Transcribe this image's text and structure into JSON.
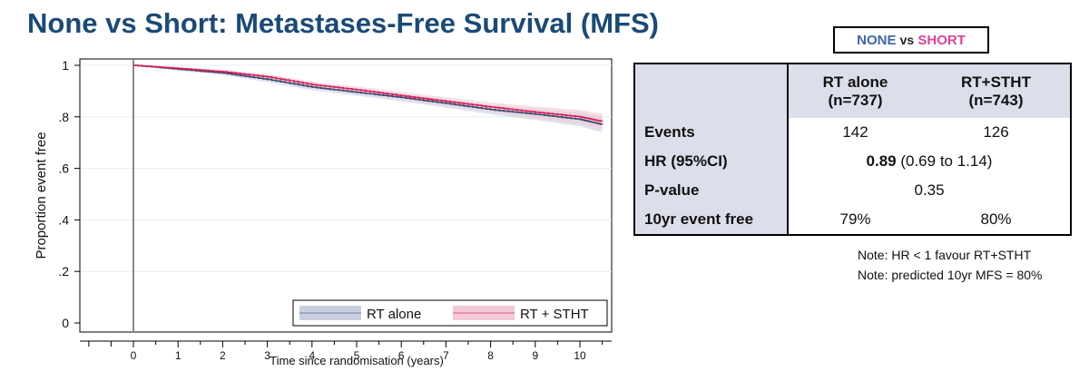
{
  "title": "None vs Short: Metastases-Free Survival (MFS)",
  "badge": {
    "none": "NONE",
    "vs": "vs",
    "short": "SHORT"
  },
  "colors": {
    "title": "#1b4a77",
    "rt_alone_line": "#3b4a75",
    "rt_alone_band": "#c9d0e0",
    "rt_stht_line": "#d6205a",
    "rt_stht_band": "#f3c9d6",
    "table_header_bg": "#dcdee9"
  },
  "table": {
    "headers": [
      {
        "line1": "RT alone",
        "line2": "(n=737)"
      },
      {
        "line1": "RT+STHT",
        "line2": "(n=743)"
      }
    ],
    "rows": [
      {
        "label": "Events",
        "v1": "142",
        "v2": "126"
      },
      {
        "label": "HR (95%CI)",
        "merged_bold": "0.89",
        "merged_rest": " (0.69 to 1.14)"
      },
      {
        "label": "P-value",
        "merged": "0.35"
      },
      {
        "label": "10yr event free",
        "v1": "79%",
        "v2": "80%"
      }
    ]
  },
  "notes": [
    "Note: HR < 1 favour RT+STHT",
    "Note: predicted 10yr MFS = 80%"
  ],
  "chart_data": {
    "type": "line",
    "title": "",
    "xlabel": "Time since randomisation (years)",
    "ylabel": "Proportion event free",
    "xlim": [
      -1,
      10.6
    ],
    "ylim": [
      0,
      1
    ],
    "x_ticks": [
      0,
      1,
      2,
      3,
      4,
      5,
      6,
      7,
      8,
      9,
      10
    ],
    "y_ticks": [
      0,
      0.2,
      0.4,
      0.6,
      0.8,
      1
    ],
    "y_tick_labels": [
      "0",
      ".2",
      ".4",
      ".6",
      ".8",
      "1"
    ],
    "grid": true,
    "legend_placement": "bottom-right",
    "series": [
      {
        "name": "RT alone",
        "x": [
          0,
          1,
          2,
          3,
          4,
          5,
          6,
          7,
          8,
          9,
          10,
          10.5
        ],
        "y": [
          1.0,
          0.985,
          0.97,
          0.945,
          0.915,
          0.895,
          0.875,
          0.852,
          0.828,
          0.81,
          0.79,
          0.77
        ],
        "ci_half_width": [
          0.0,
          0.005,
          0.008,
          0.01,
          0.012,
          0.013,
          0.014,
          0.016,
          0.018,
          0.022,
          0.027,
          0.03
        ]
      },
      {
        "name": "RT + STHT",
        "x": [
          0,
          1,
          2,
          3,
          4,
          5,
          6,
          7,
          8,
          9,
          10,
          10.5
        ],
        "y": [
          1.0,
          0.988,
          0.975,
          0.955,
          0.925,
          0.905,
          0.882,
          0.86,
          0.838,
          0.818,
          0.8,
          0.782
        ],
        "ci_half_width": [
          0.0,
          0.005,
          0.008,
          0.01,
          0.012,
          0.013,
          0.014,
          0.016,
          0.018,
          0.022,
          0.027,
          0.03
        ]
      }
    ]
  }
}
